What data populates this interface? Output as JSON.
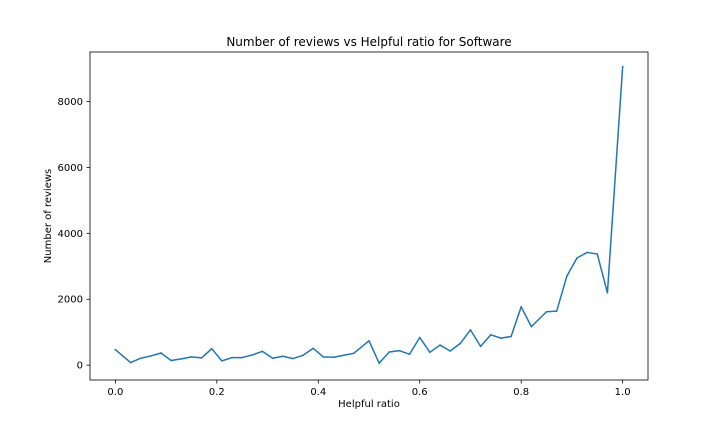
{
  "chart_data": {
    "type": "line",
    "title": "Number of reviews vs Helpful ratio for Software",
    "xlabel": "Helpful ratio",
    "ylabel": "Number of reviews",
    "xlim": [
      -0.05,
      1.05
    ],
    "ylim": [
      -450,
      9500
    ],
    "x_ticks": [
      0.0,
      0.2,
      0.4,
      0.6,
      0.8,
      1.0
    ],
    "x_tick_labels": [
      "0.0",
      "0.2",
      "0.4",
      "0.6",
      "0.8",
      "1.0"
    ],
    "y_ticks": [
      0,
      2000,
      4000,
      6000,
      8000
    ],
    "y_tick_labels": [
      "0",
      "2000",
      "4000",
      "6000",
      "8000"
    ],
    "grid": false,
    "legend": "none",
    "line_color": "#1f77b4",
    "series": [
      {
        "x": [
          0.0,
          0.03,
          0.05,
          0.07,
          0.09,
          0.11,
          0.13,
          0.15,
          0.17,
          0.19,
          0.21,
          0.23,
          0.25,
          0.27,
          0.29,
          0.31,
          0.33,
          0.35,
          0.37,
          0.39,
          0.41,
          0.43,
          0.45,
          0.47,
          0.5,
          0.52,
          0.54,
          0.56,
          0.58,
          0.6,
          0.62,
          0.64,
          0.66,
          0.68,
          0.7,
          0.72,
          0.74,
          0.76,
          0.78,
          0.8,
          0.82,
          0.85,
          0.87,
          0.89,
          0.91,
          0.93,
          0.95,
          0.97,
          1.0
        ],
        "y": [
          470,
          80,
          210,
          280,
          370,
          140,
          190,
          250,
          220,
          500,
          130,
          230,
          230,
          310,
          420,
          210,
          270,
          200,
          300,
          510,
          250,
          240,
          300,
          360,
          740,
          60,
          400,
          440,
          330,
          840,
          390,
          610,
          430,
          660,
          1070,
          570,
          920,
          820,
          870,
          1770,
          1170,
          1620,
          1640,
          2700,
          3250,
          3420,
          3370,
          2200,
          9050
        ]
      }
    ]
  }
}
